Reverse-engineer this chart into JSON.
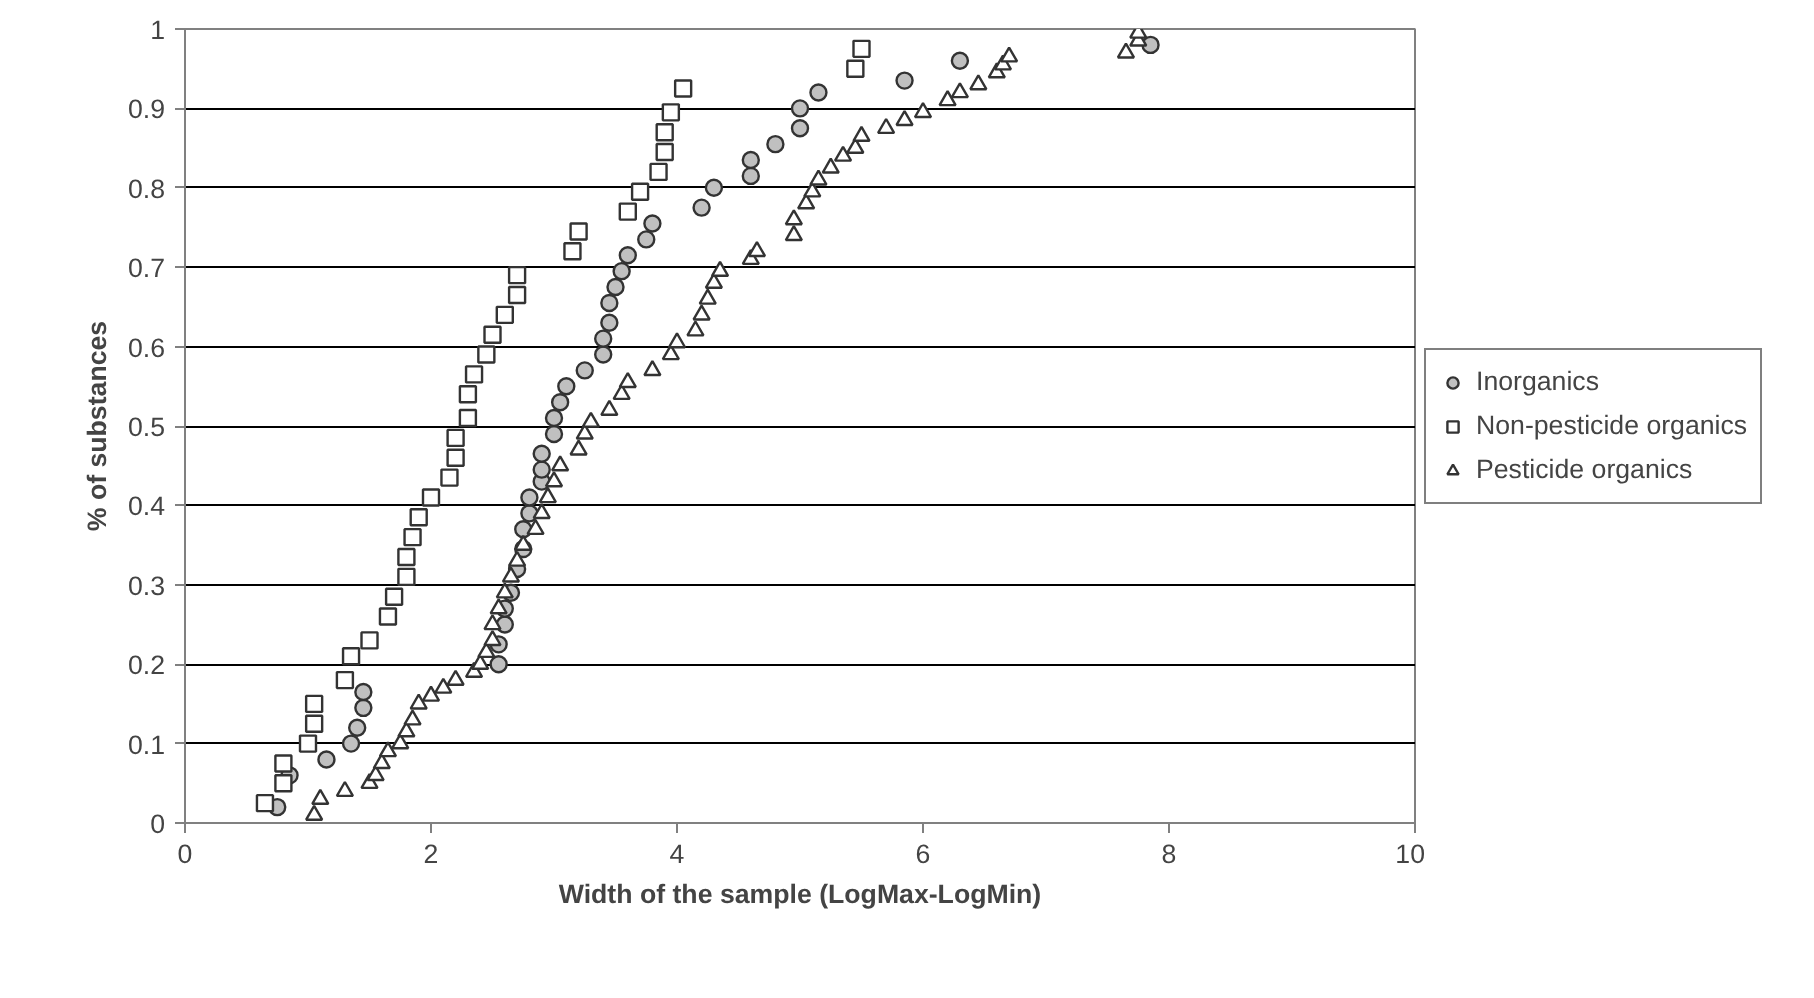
{
  "chart_data": {
    "type": "scatter",
    "xlabel": "Width of the sample (LogMax-LogMin)",
    "ylabel": "% of substances",
    "xlim": [
      0,
      10
    ],
    "xticks": [
      0,
      2,
      4,
      6,
      8,
      10
    ],
    "ylim": [
      0,
      1
    ],
    "yticks": [
      0,
      0.1,
      0.2,
      0.3,
      0.4,
      0.5,
      0.6,
      0.7,
      0.8,
      0.9,
      1
    ],
    "grid": "y",
    "legend": "right",
    "series": [
      {
        "name": "Inorganics",
        "marker": "circle",
        "color": "#c0c0c0",
        "x": [
          0.75,
          0.85,
          1.15,
          1.35,
          1.4,
          1.45,
          1.45,
          2.55,
          2.55,
          2.6,
          2.6,
          2.65,
          2.7,
          2.75,
          2.75,
          2.8,
          2.8,
          2.9,
          2.9,
          2.9,
          3.0,
          3.0,
          3.05,
          3.1,
          3.25,
          3.4,
          3.4,
          3.45,
          3.45,
          3.5,
          3.55,
          3.6,
          3.75,
          3.8,
          4.2,
          4.3,
          4.6,
          4.6,
          4.8,
          5.0,
          5.0,
          5.15,
          5.85,
          6.3,
          7.85
        ],
        "values": [
          0.02,
          0.06,
          0.08,
          0.1,
          0.12,
          0.145,
          0.165,
          0.2,
          0.225,
          0.25,
          0.27,
          0.29,
          0.32,
          0.345,
          0.37,
          0.39,
          0.41,
          0.43,
          0.445,
          0.465,
          0.49,
          0.51,
          0.53,
          0.55,
          0.57,
          0.59,
          0.61,
          0.63,
          0.655,
          0.675,
          0.695,
          0.715,
          0.735,
          0.755,
          0.775,
          0.8,
          0.815,
          0.835,
          0.855,
          0.875,
          0.9,
          0.92,
          0.935,
          0.96,
          0.98
        ]
      },
      {
        "name": "Non-pesticide organics",
        "marker": "square",
        "color": "#ffffff",
        "x": [
          0.65,
          0.8,
          0.8,
          1.0,
          1.05,
          1.05,
          1.3,
          1.35,
          1.5,
          1.65,
          1.7,
          1.8,
          1.8,
          1.85,
          1.9,
          2.0,
          2.15,
          2.2,
          2.2,
          2.3,
          2.3,
          2.35,
          2.45,
          2.5,
          2.6,
          2.7,
          2.7,
          3.15,
          3.2,
          3.6,
          3.7,
          3.85,
          3.9,
          3.9,
          3.95,
          4.05,
          5.45,
          5.5
        ],
        "values": [
          0.025,
          0.05,
          0.075,
          0.1,
          0.125,
          0.15,
          0.18,
          0.21,
          0.23,
          0.26,
          0.285,
          0.31,
          0.335,
          0.36,
          0.385,
          0.41,
          0.435,
          0.46,
          0.485,
          0.51,
          0.54,
          0.565,
          0.59,
          0.615,
          0.64,
          0.665,
          0.69,
          0.72,
          0.745,
          0.77,
          0.795,
          0.82,
          0.845,
          0.87,
          0.895,
          0.925,
          0.95,
          0.975
        ]
      },
      {
        "name": "Pesticide organics",
        "marker": "triangle",
        "color": "#ffffff",
        "x": [
          1.05,
          1.1,
          1.3,
          1.5,
          1.55,
          1.6,
          1.65,
          1.75,
          1.8,
          1.85,
          1.9,
          2.0,
          2.1,
          2.2,
          2.35,
          2.4,
          2.45,
          2.5,
          2.5,
          2.55,
          2.6,
          2.65,
          2.7,
          2.75,
          2.85,
          2.9,
          2.95,
          3.0,
          3.05,
          3.2,
          3.25,
          3.3,
          3.45,
          3.55,
          3.6,
          3.8,
          3.95,
          4.0,
          4.15,
          4.2,
          4.25,
          4.3,
          4.35,
          4.6,
          4.65,
          4.95,
          4.95,
          5.05,
          5.1,
          5.15,
          5.25,
          5.35,
          5.45,
          5.5,
          5.7,
          5.85,
          6.0,
          6.2,
          6.3,
          6.45,
          6.6,
          6.65,
          6.7,
          7.65,
          7.75,
          7.75
        ],
        "values": [
          0.01,
          0.03,
          0.04,
          0.05,
          0.06,
          0.075,
          0.09,
          0.1,
          0.115,
          0.13,
          0.15,
          0.16,
          0.17,
          0.18,
          0.19,
          0.2,
          0.215,
          0.23,
          0.25,
          0.27,
          0.29,
          0.31,
          0.33,
          0.35,
          0.37,
          0.39,
          0.41,
          0.43,
          0.45,
          0.47,
          0.49,
          0.505,
          0.52,
          0.54,
          0.555,
          0.57,
          0.59,
          0.605,
          0.62,
          0.64,
          0.66,
          0.68,
          0.695,
          0.71,
          0.72,
          0.74,
          0.76,
          0.78,
          0.795,
          0.81,
          0.825,
          0.84,
          0.85,
          0.865,
          0.875,
          0.885,
          0.895,
          0.91,
          0.92,
          0.93,
          0.945,
          0.955,
          0.965,
          0.97,
          0.985,
          0.995
        ]
      }
    ]
  }
}
